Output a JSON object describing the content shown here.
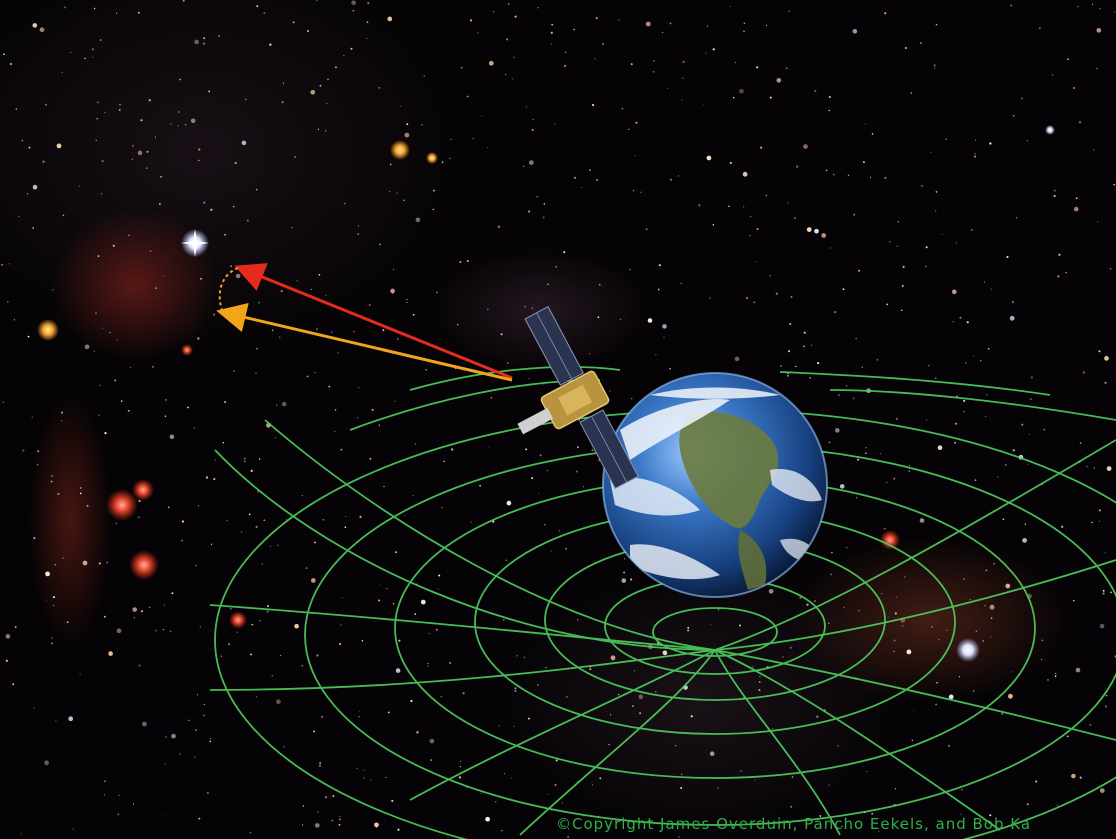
{
  "image": {
    "subject": "space-illustration",
    "icons": [
      "satellite-icon",
      "earth-icon",
      "guide-star-icon"
    ],
    "colors": {
      "grid": "#4fd05f",
      "line_of_sight_true": "#e52a1e",
      "line_of_sight_apparent": "#f1a51b",
      "credit_text": "#2fb14a"
    }
  },
  "credit": {
    "text": "©Copyright James Overduin, Pancho Eekels, and Bob Ka"
  }
}
